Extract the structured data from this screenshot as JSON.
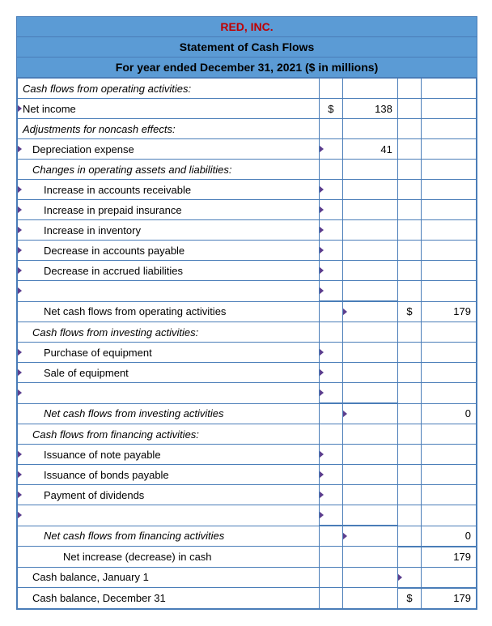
{
  "header": {
    "company": "RED, INC.",
    "title": "Statement of Cash Flows",
    "period": "For year ended December 31, 2021 ($ in millions)"
  },
  "colors": {
    "header_bg": "#5b9bd5",
    "border": "#4a7db8",
    "company_text": "#c00000",
    "tick": "#5b3e8e"
  },
  "rows": [
    {
      "label": "Cash flows from operating activities:",
      "italic": true,
      "indent": 0,
      "sym1": "",
      "val1": "",
      "sym2": "",
      "val2": "",
      "ticks": [
        false,
        false,
        false,
        false,
        false
      ]
    },
    {
      "label": "Net income",
      "italic": false,
      "indent": 0,
      "sym1": "$",
      "val1": "138",
      "sym2": "",
      "val2": "",
      "ticks": [
        true,
        false,
        false,
        false,
        false
      ]
    },
    {
      "label": "Adjustments for noncash effects:",
      "italic": true,
      "indent": 0,
      "sym1": "",
      "val1": "",
      "sym2": "",
      "val2": "",
      "ticks": [
        false,
        false,
        false,
        false,
        false
      ]
    },
    {
      "label": "Depreciation expense",
      "italic": false,
      "indent": 1,
      "sym1": "",
      "val1": "41",
      "sym2": "",
      "val2": "",
      "ticks": [
        true,
        true,
        false,
        false,
        false
      ]
    },
    {
      "label": "Changes in operating assets and liabilities:",
      "italic": true,
      "indent": 1,
      "sym1": "",
      "val1": "",
      "sym2": "",
      "val2": "",
      "ticks": [
        false,
        false,
        false,
        false,
        false
      ]
    },
    {
      "label": "Increase in accounts receivable",
      "italic": false,
      "indent": 2,
      "sym1": "",
      "val1": "",
      "sym2": "",
      "val2": "",
      "ticks": [
        true,
        true,
        false,
        false,
        false
      ]
    },
    {
      "label": "Increase in prepaid insurance",
      "italic": false,
      "indent": 2,
      "sym1": "",
      "val1": "",
      "sym2": "",
      "val2": "",
      "ticks": [
        true,
        true,
        false,
        false,
        false
      ]
    },
    {
      "label": "Increase in inventory",
      "italic": false,
      "indent": 2,
      "sym1": "",
      "val1": "",
      "sym2": "",
      "val2": "",
      "ticks": [
        true,
        true,
        false,
        false,
        false
      ]
    },
    {
      "label": "Decrease in accounts payable",
      "italic": false,
      "indent": 2,
      "sym1": "",
      "val1": "",
      "sym2": "",
      "val2": "",
      "ticks": [
        true,
        true,
        false,
        false,
        false
      ]
    },
    {
      "label": "Decrease in accrued liabilities",
      "italic": false,
      "indent": 2,
      "sym1": "",
      "val1": "",
      "sym2": "",
      "val2": "",
      "ticks": [
        true,
        true,
        false,
        false,
        false
      ]
    },
    {
      "label": "",
      "italic": false,
      "indent": 0,
      "sym1": "",
      "val1": "",
      "sym2": "",
      "val2": "",
      "ticks": [
        true,
        true,
        false,
        false,
        false
      ]
    },
    {
      "label": "Net cash flows from operating activities",
      "italic": false,
      "indent": 2,
      "sym1": "",
      "val1": "",
      "sym2": "$",
      "val2": "179",
      "ticks": [
        false,
        false,
        true,
        false,
        false
      ],
      "thicktop": [
        false,
        true,
        true,
        false,
        false
      ]
    },
    {
      "label": "Cash flows from investing activities:",
      "italic": true,
      "indent": 1,
      "sym1": "",
      "val1": "",
      "sym2": "",
      "val2": "",
      "ticks": [
        false,
        false,
        false,
        false,
        false
      ]
    },
    {
      "label": "Purchase of equipment",
      "italic": false,
      "indent": 2,
      "sym1": "",
      "val1": "",
      "sym2": "",
      "val2": "",
      "ticks": [
        true,
        true,
        false,
        false,
        false
      ]
    },
    {
      "label": "Sale of equipment",
      "italic": false,
      "indent": 2,
      "sym1": "",
      "val1": "",
      "sym2": "",
      "val2": "",
      "ticks": [
        true,
        true,
        false,
        false,
        false
      ]
    },
    {
      "label": "",
      "italic": false,
      "indent": 0,
      "sym1": "",
      "val1": "",
      "sym2": "",
      "val2": "",
      "ticks": [
        true,
        true,
        false,
        false,
        false
      ]
    },
    {
      "label": "Net cash flows from investing activities",
      "italic": true,
      "indent": 2,
      "sym1": "",
      "val1": "",
      "sym2": "",
      "val2": "0",
      "ticks": [
        false,
        false,
        true,
        false,
        false
      ],
      "thicktop": [
        false,
        true,
        true,
        false,
        false
      ]
    },
    {
      "label": "Cash flows from financing activities:",
      "italic": true,
      "indent": 1,
      "sym1": "",
      "val1": "",
      "sym2": "",
      "val2": "",
      "ticks": [
        false,
        false,
        false,
        false,
        false
      ]
    },
    {
      "label": "Issuance of note payable",
      "italic": false,
      "indent": 2,
      "sym1": "",
      "val1": "",
      "sym2": "",
      "val2": "",
      "ticks": [
        true,
        true,
        false,
        false,
        false
      ]
    },
    {
      "label": "Issuance of bonds payable",
      "italic": false,
      "indent": 2,
      "sym1": "",
      "val1": "",
      "sym2": "",
      "val2": "",
      "ticks": [
        true,
        true,
        false,
        false,
        false
      ]
    },
    {
      "label": "Payment of dividends",
      "italic": false,
      "indent": 2,
      "sym1": "",
      "val1": "",
      "sym2": "",
      "val2": "",
      "ticks": [
        true,
        true,
        false,
        false,
        false
      ]
    },
    {
      "label": "",
      "italic": false,
      "indent": 0,
      "sym1": "",
      "val1": "",
      "sym2": "",
      "val2": "",
      "ticks": [
        true,
        true,
        false,
        false,
        false
      ]
    },
    {
      "label": "Net cash flows from financing activities",
      "italic": true,
      "indent": 2,
      "sym1": "",
      "val1": "",
      "sym2": "",
      "val2": "0",
      "ticks": [
        false,
        false,
        true,
        false,
        false
      ],
      "thicktop": [
        false,
        true,
        true,
        false,
        false
      ]
    },
    {
      "label": "Net increase (decrease) in cash",
      "italic": false,
      "indent": 3,
      "sym1": "",
      "val1": "",
      "sym2": "",
      "val2": "179",
      "ticks": [
        false,
        false,
        false,
        false,
        false
      ],
      "thicktop": [
        false,
        false,
        false,
        true,
        true
      ]
    },
    {
      "label": "Cash balance, January 1",
      "italic": false,
      "indent": 1,
      "sym1": "",
      "val1": "",
      "sym2": "",
      "val2": "",
      "ticks": [
        false,
        false,
        false,
        true,
        false
      ]
    },
    {
      "label": "Cash balance, December 31",
      "italic": false,
      "indent": 1,
      "sym1": "",
      "val1": "",
      "sym2": "$",
      "val2": "179",
      "ticks": [
        false,
        false,
        false,
        false,
        false
      ],
      "thicktop": [
        false,
        false,
        false,
        true,
        true
      ]
    }
  ]
}
